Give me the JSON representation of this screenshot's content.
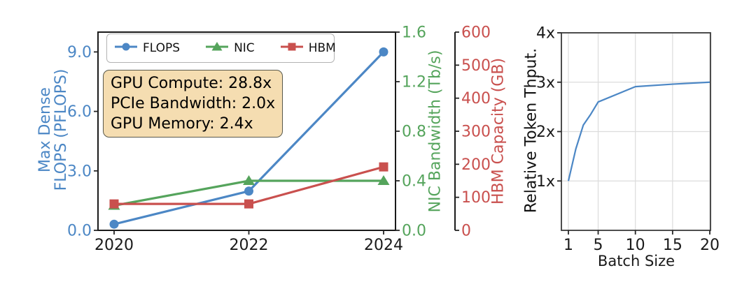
{
  "colors": {
    "flops_blue": "#4C87C5",
    "nic_green": "#55A45C",
    "hbm_red": "#C9504E",
    "axis_dark": "#1a1a1a",
    "tick_dark": "#262626",
    "grid_gray": "#dcdcdc",
    "annotation_bg": "#f5ddb1",
    "legend_border": "#b3b3b3"
  },
  "chart_data": [
    {
      "type": "line",
      "title": "",
      "categories": [
        "2020",
        "2022",
        "2024"
      ],
      "series": [
        {
          "name": "FLOPS",
          "axis": "left",
          "marker": "circle",
          "color": "#4C87C5",
          "values": [
            0.31,
            1.98,
            9.0
          ]
        },
        {
          "name": "NIC",
          "axis": "green",
          "marker": "triangle",
          "color": "#55A45C",
          "values": [
            0.2,
            0.4,
            0.4
          ]
        },
        {
          "name": "HBM",
          "axis": "red",
          "marker": "square",
          "color": "#C9504E",
          "values": [
            80,
            80,
            192
          ]
        }
      ],
      "axes": {
        "left": {
          "label_line1": "Max Dense",
          "label_line2": "FLOPS (PFLOPS)",
          "color": "#4C87C5",
          "ticks": [
            0,
            3,
            6,
            9
          ],
          "tick_labels": [
            "0.0",
            "3.0",
            "6.0",
            "9.0"
          ],
          "ylim": [
            0,
            10
          ]
        },
        "green": {
          "label": "NIC Bandwidth (Tb/s)",
          "color": "#55A45C",
          "ticks": [
            0,
            0.4,
            0.8,
            1.2,
            1.6
          ],
          "tick_labels": [
            "0.0",
            "0.4",
            "0.8",
            "1.2",
            "1.6"
          ],
          "ylim": [
            0,
            1.6
          ]
        },
        "red": {
          "label": "HBM Capacity (GB)",
          "color": "#C9504E",
          "ticks": [
            0,
            100,
            200,
            300,
            400,
            500,
            600
          ],
          "tick_labels": [
            "0",
            "100",
            "200",
            "300",
            "400",
            "500",
            "600"
          ],
          "ylim": [
            0,
            600
          ]
        }
      },
      "legend_position": "upper-center-inside",
      "grid": false,
      "annotation": {
        "lines": [
          "GPU Compute: 28.8x",
          "PCIe Bandwidth: 2.0x",
          "GPU Memory: 2.4x"
        ]
      }
    },
    {
      "type": "line",
      "title": "",
      "xlabel": "Batch Size",
      "ylabel": "Relative Token Thput.",
      "color": "#4C87C5",
      "x": [
        1,
        2,
        3,
        4,
        5,
        10,
        15,
        20
      ],
      "values": [
        1.0,
        1.65,
        2.13,
        2.35,
        2.6,
        2.91,
        2.96,
        3.0
      ],
      "xlim": [
        1,
        20
      ],
      "ylim": [
        0,
        4
      ],
      "xticks": [
        1,
        5,
        10,
        15,
        20
      ],
      "xtick_labels": [
        "1",
        "5",
        "10",
        "15",
        "20"
      ],
      "yticks": [
        1,
        2,
        3,
        4
      ],
      "ytick_labels": [
        "1x",
        "2x",
        "3x",
        "4x"
      ],
      "grid": true
    }
  ]
}
